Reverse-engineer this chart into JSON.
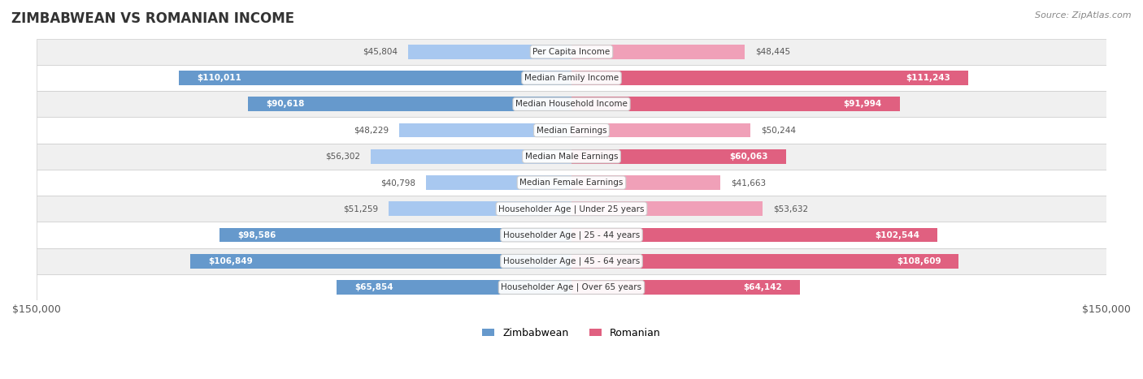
{
  "title": "ZIMBABWEAN VS ROMANIAN INCOME",
  "source": "Source: ZipAtlas.com",
  "categories": [
    "Per Capita Income",
    "Median Family Income",
    "Median Household Income",
    "Median Earnings",
    "Median Male Earnings",
    "Median Female Earnings",
    "Householder Age | Under 25 years",
    "Householder Age | 25 - 44 years",
    "Householder Age | 45 - 64 years",
    "Householder Age | Over 65 years"
  ],
  "zimbabwean_values": [
    45804,
    110011,
    90618,
    48229,
    56302,
    40798,
    51259,
    98586,
    106849,
    65854
  ],
  "romanian_values": [
    48445,
    111243,
    91994,
    50244,
    60063,
    41663,
    53632,
    102544,
    108609,
    64142
  ],
  "zimbabwean_labels": [
    "$45,804",
    "$110,011",
    "$90,618",
    "$48,229",
    "$56,302",
    "$40,798",
    "$51,259",
    "$98,586",
    "$106,849",
    "$65,854"
  ],
  "romanian_labels": [
    "$48,445",
    "$111,243",
    "$91,994",
    "$50,244",
    "$60,063",
    "$41,663",
    "$53,632",
    "$102,544",
    "$108,609",
    "$64,142"
  ],
  "max_val": 150000,
  "bar_height": 0.55,
  "color_zimbabwean_light": "#a8c8f0",
  "color_zimbabwean_dark": "#6699cc",
  "color_romanian_light": "#f0a0b8",
  "color_romanian_dark": "#e06080",
  "color_label_dark_zim": "#5588bb",
  "color_label_dark_rom": "#cc4477",
  "bg_color": "#f5f5f5",
  "row_bg_color": "#f0f0f0",
  "row_alt_color": "#ffffff",
  "legend_zim": "Zimbabwean",
  "legend_rom": "Romanian"
}
